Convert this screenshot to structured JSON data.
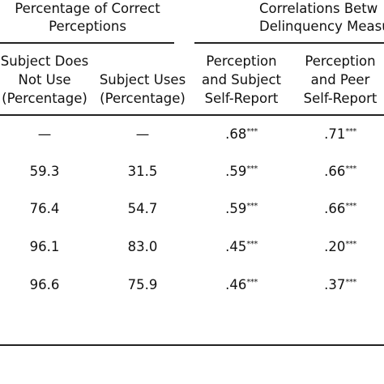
{
  "table": {
    "group_headers": [
      {
        "lines": [
          "Percentage of Correct",
          "Perceptions"
        ]
      },
      {
        "lines": [
          "Correlations Betw",
          "Delinquency Measu"
        ]
      }
    ],
    "columns": [
      [
        "Subject Does",
        "Not Use",
        "(Percentage)"
      ],
      [
        "Subject Uses",
        "(Percentage)"
      ],
      [
        "Perception",
        "and Subject",
        "Self-Report"
      ],
      [
        "Perception",
        "and Peer",
        "Self-Report"
      ]
    ],
    "rows": [
      [
        {
          "text": "—"
        },
        {
          "text": "—"
        },
        {
          "text": ".68",
          "sup": "***"
        },
        {
          "text": ".71",
          "sup": "***"
        }
      ],
      [
        {
          "text": "59.3"
        },
        {
          "text": "31.5"
        },
        {
          "text": ".59",
          "sup": "***"
        },
        {
          "text": ".66",
          "sup": "***"
        }
      ],
      [
        {
          "text": "76.4"
        },
        {
          "text": "54.7"
        },
        {
          "text": ".59",
          "sup": "***"
        },
        {
          "text": ".66",
          "sup": "***"
        }
      ],
      [
        {
          "text": "96.1"
        },
        {
          "text": "83.0"
        },
        {
          "text": ".45",
          "sup": "***"
        },
        {
          "text": ".20",
          "sup": "***"
        }
      ],
      [
        {
          "text": "96.6"
        },
        {
          "text": "75.9"
        },
        {
          "text": ".46",
          "sup": "***"
        },
        {
          "text": ".37",
          "sup": "***"
        }
      ]
    ]
  }
}
